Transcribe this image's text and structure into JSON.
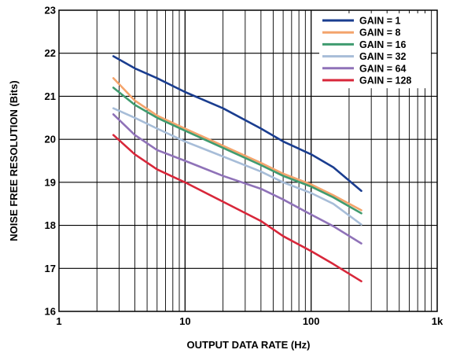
{
  "chart_data": {
    "type": "line",
    "xscale": "log",
    "xlabel": "OUTPUT DATA RATE (Hz)",
    "ylabel": "NOISE FREE RESOLUTION (Bits)",
    "xlim": [
      1,
      1000
    ],
    "ylim": [
      16,
      23
    ],
    "xticks": [
      1,
      10,
      100,
      1000
    ],
    "xtick_labels": [
      "1",
      "10",
      "100",
      "1k"
    ],
    "yticks": [
      16,
      17,
      18,
      19,
      20,
      21,
      22,
      23
    ],
    "ytick_labels": [
      "16",
      "17",
      "18",
      "19",
      "20",
      "21",
      "22",
      "23"
    ],
    "grid": true,
    "legend_position": "top-right",
    "series": [
      {
        "name": "GAIN = 1",
        "color": "#1a3d8f",
        "x": [
          2.7,
          4,
          6,
          10,
          20,
          40,
          60,
          100,
          150,
          250
        ],
        "y": [
          21.93,
          21.65,
          21.42,
          21.1,
          20.72,
          20.25,
          19.95,
          19.65,
          19.35,
          18.8
        ]
      },
      {
        "name": "GAIN = 8",
        "color": "#f4a46c",
        "x": [
          2.7,
          4,
          6,
          10,
          20,
          40,
          60,
          100,
          150,
          250
        ],
        "y": [
          21.42,
          20.9,
          20.55,
          20.25,
          19.85,
          19.45,
          19.2,
          18.95,
          18.7,
          18.35
        ]
      },
      {
        "name": "GAIN = 16",
        "color": "#3f9b6f",
        "x": [
          2.7,
          4,
          6,
          10,
          20,
          40,
          60,
          100,
          150,
          250
        ],
        "y": [
          21.2,
          20.8,
          20.5,
          20.2,
          19.8,
          19.4,
          19.15,
          18.9,
          18.65,
          18.28
        ]
      },
      {
        "name": "GAIN = 32",
        "color": "#a7bdd8",
        "x": [
          2.7,
          4,
          6,
          10,
          20,
          40,
          60,
          100,
          150,
          250
        ],
        "y": [
          20.72,
          20.5,
          20.25,
          19.95,
          19.6,
          19.25,
          19.0,
          18.75,
          18.5,
          18.02
        ]
      },
      {
        "name": "GAIN = 64",
        "color": "#8f72b8",
        "x": [
          2.7,
          4,
          6,
          10,
          20,
          40,
          60,
          100,
          150,
          250
        ],
        "y": [
          20.58,
          20.1,
          19.75,
          19.5,
          19.15,
          18.85,
          18.6,
          18.25,
          17.98,
          17.58
        ]
      },
      {
        "name": "GAIN = 128",
        "color": "#d8273a",
        "x": [
          2.7,
          4,
          6,
          10,
          20,
          40,
          60,
          100,
          150,
          250
        ],
        "y": [
          20.1,
          19.65,
          19.3,
          19.0,
          18.55,
          18.1,
          17.75,
          17.4,
          17.1,
          16.7
        ]
      }
    ]
  }
}
